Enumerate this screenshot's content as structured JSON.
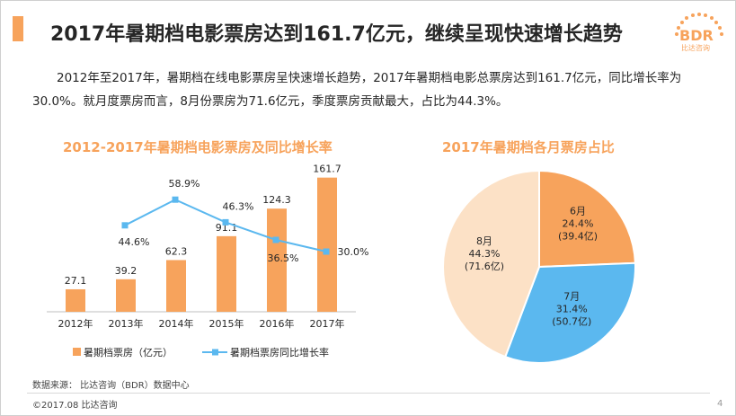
{
  "title": "2017年暑期档电影票房达到161.7亿元，继续呈现快速增长趋势",
  "logo": {
    "text": "BDR",
    "sub": "比达咨询"
  },
  "summary": "2012年至2017年，暑期档在线电影票房呈快速增长趋势，2017年暑期档电影总票房达到161.7亿元，同比增长率为30.0%。就月度票房而言，8月份票房为71.6亿元，季度票房贡献最大，占比为44.3%。",
  "colors": {
    "accent": "#f7a35c",
    "line": "#5bb8ef",
    "pie_june": "#f7a35c",
    "pie_july": "#5bb8ef",
    "pie_aug": "#fce1c6"
  },
  "chart_data": [
    {
      "type": "bar",
      "title": "2012-2017年暑期档电影票房及同比增长率",
      "categories": [
        "2012年",
        "2013年",
        "2014年",
        "2015年",
        "2016年",
        "2017年"
      ],
      "series": [
        {
          "name": "暑期档票房（亿元）",
          "type": "bar",
          "values": [
            27.1,
            39.2,
            62.3,
            91.1,
            124.3,
            161.7
          ]
        },
        {
          "name": "暑期档票房同比增长率",
          "type": "line",
          "values": [
            null,
            44.6,
            58.9,
            46.3,
            36.5,
            30.0
          ],
          "labels": [
            "",
            "44.6%",
            "58.9%",
            "46.3%",
            "36.5%",
            "30.0%"
          ]
        }
      ],
      "bar_labels": [
        "27.1",
        "39.2",
        "62.3",
        "91.1",
        "124.3",
        "161.7"
      ],
      "ylim": [
        0,
        170
      ],
      "line_ylim": [
        20,
        70
      ],
      "legend_position": "bottom"
    },
    {
      "type": "pie",
      "title": "2017年暑期档各月票房占比",
      "slices": [
        {
          "label": "6月",
          "percent": 24.4,
          "value": 39.4,
          "pct_text": "24.4%",
          "value_text": "(39.4亿)"
        },
        {
          "label": "7月",
          "percent": 31.4,
          "value": 50.7,
          "pct_text": "31.4%",
          "value_text": "(50.7亿)"
        },
        {
          "label": "8月",
          "percent": 44.3,
          "value": 71.6,
          "pct_text": "44.3%",
          "value_text": "(71.6亿)"
        }
      ]
    }
  ],
  "source": "数据来源：  比达咨询（BDR）数据中心",
  "copyright": "©2017.08 比达咨询",
  "page_number": "4"
}
